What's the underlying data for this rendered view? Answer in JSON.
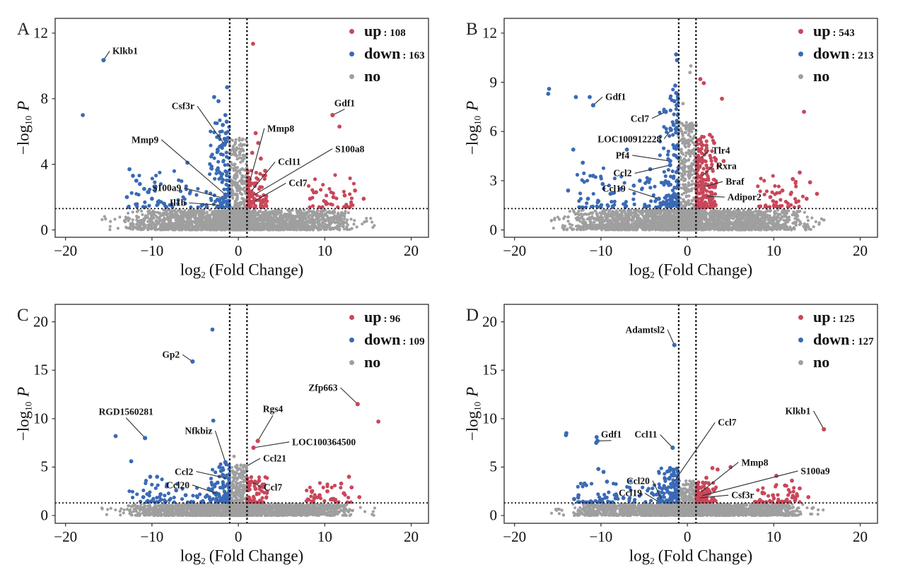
{
  "colors": {
    "up": "#c9475a",
    "down": "#3a6ab5",
    "no": "#9f9f9f",
    "annotation": "#2e2e2e",
    "frame": "#3c3c3c",
    "threshold": "#0a0a0a"
  },
  "legend_labels": {
    "up": "up",
    "down": "down",
    "no": "no"
  },
  "axis": {
    "x_label": {
      "pre": "log",
      "sub": "2",
      "post": "(Fold Change)"
    },
    "y_label": {
      "pre": "−log",
      "sub": "10",
      "post": "P"
    }
  },
  "chart_data": [
    {
      "panel": "A",
      "type": "scatter",
      "xlabel": "log2 (Fold Change)",
      "ylabel": "-log10 P",
      "xlim": [
        -20,
        20
      ],
      "ylim": [
        0,
        12
      ],
      "xticks": [
        -20,
        -10,
        0,
        10,
        20
      ],
      "yticks": [
        0,
        4,
        8,
        12
      ],
      "thresholds": {
        "log2fc": [
          -1,
          1
        ],
        "neg_log10_p": 1.3
      },
      "counts": {
        "up": 108,
        "down": 163
      },
      "labeled_genes": [
        {
          "name": "Klkb1",
          "cls": "down",
          "x": -15.6,
          "y": 10.35,
          "lx": -13.1,
          "ly": 10.9
        },
        {
          "name": "Csf3r",
          "cls": "down",
          "x": -1.6,
          "y": 5.2,
          "lx": -6.4,
          "ly": 7.55
        },
        {
          "name": "Mmp9",
          "cls": "down",
          "x": -1.5,
          "y": 2.15,
          "lx": -10.8,
          "ly": 5.5
        },
        {
          "name": "S100a9",
          "cls": "down",
          "x": -1.8,
          "y": 1.95,
          "lx": -8.3,
          "ly": 2.55
        },
        {
          "name": "Il1b",
          "cls": "down",
          "x": -2.0,
          "y": 1.5,
          "lx": -7.0,
          "ly": 1.65
        },
        {
          "name": "Mmp8",
          "cls": "up",
          "x": 1.3,
          "y": 2.9,
          "lx": 4.9,
          "ly": 6.2
        },
        {
          "name": "Ccl11",
          "cls": "up",
          "x": 1.4,
          "y": 2.3,
          "lx": 5.9,
          "ly": 4.15
        },
        {
          "name": "S100a8",
          "cls": "up",
          "x": 1.55,
          "y": 2.05,
          "lx": 12.9,
          "ly": 4.95
        },
        {
          "name": "Ccl7",
          "cls": "up",
          "x": 1.7,
          "y": 1.7,
          "lx": 6.9,
          "ly": 2.85
        },
        {
          "name": "Gdf1",
          "cls": "up",
          "x": 10.9,
          "y": 7.0,
          "lx": 12.3,
          "ly": 7.75
        }
      ],
      "extra_points": {
        "down": [
          [
            -18,
            7.0
          ],
          [
            -12.6,
            3.7
          ],
          [
            -12.2,
            3.3
          ],
          [
            -11.8,
            3.0
          ],
          [
            -11.4,
            2.8
          ],
          [
            -10.9,
            2.5
          ],
          [
            -10.4,
            2.3
          ],
          [
            -12.9,
            2.0
          ],
          [
            -10.0,
            1.9
          ],
          [
            -9.3,
            1.7
          ],
          [
            -8.6,
            1.6
          ],
          [
            -2.8,
            8.1
          ],
          [
            -2.3,
            7.85
          ],
          [
            -1.3,
            8.7
          ],
          [
            -1.5,
            7.0
          ],
          [
            -1.35,
            6.6
          ],
          [
            -1.8,
            6.4
          ],
          [
            -1.45,
            5.9
          ],
          [
            -1.6,
            5.55
          ],
          [
            -2.4,
            4.9
          ],
          [
            -5.9,
            4.1
          ]
        ],
        "up": [
          [
            1.7,
            11.35
          ],
          [
            11.7,
            6.3
          ],
          [
            2.0,
            5.9
          ],
          [
            2.3,
            5.3
          ],
          [
            1.6,
            4.7
          ],
          [
            2.6,
            4.35
          ],
          [
            3.1,
            3.6
          ],
          [
            13.5,
            2.4
          ],
          [
            14.5,
            1.9
          ],
          [
            12.3,
            2.1
          ],
          [
            9.0,
            2.3
          ],
          [
            8.3,
            1.9
          ],
          [
            10.1,
            1.7
          ],
          [
            11.0,
            2.0
          ]
        ],
        "no": [
          [
            0.35,
            4.9
          ],
          [
            0.55,
            4.55
          ]
        ]
      },
      "cloud": {
        "seed": 101,
        "band": 2000,
        "bandHalf": 13.6,
        "horn": 170,
        "far": 26,
        "spike": 430,
        "spikeH": 5.6,
        "downCol": 115,
        "downColH": 5.4,
        "downTail": 58,
        "upCol": 95,
        "upColH": 2.3,
        "upBand": 40
      }
    },
    {
      "panel": "B",
      "type": "scatter",
      "xlabel": "log2 (Fold Change)",
      "ylabel": "-log10 P",
      "xlim": [
        -20,
        20
      ],
      "ylim": [
        0,
        12
      ],
      "xticks": [
        -20,
        -10,
        0,
        10,
        20
      ],
      "yticks": [
        0,
        3,
        6,
        9,
        12
      ],
      "thresholds": {
        "log2fc": [
          -1,
          1
        ],
        "neg_log10_p": 1.3
      },
      "counts": {
        "up": 543,
        "down": 213
      },
      "labeled_genes": [
        {
          "name": "Gdf1",
          "cls": "down",
          "x": -10.9,
          "y": 7.6,
          "lx": -8.3,
          "ly": 8.1
        },
        {
          "name": "Ccl7",
          "cls": "down",
          "x": -2.5,
          "y": 7.2,
          "lx": -5.5,
          "ly": 6.8
        },
        {
          "name": "LOC100912228",
          "cls": "down",
          "x": -1.9,
          "y": 6.1,
          "lx": -6.7,
          "ly": 5.55
        },
        {
          "name": "Pf4",
          "cls": "down",
          "x": -2.0,
          "y": 4.2,
          "lx": -7.5,
          "ly": 4.55
        },
        {
          "name": "Ccl2",
          "cls": "down",
          "x": -2.0,
          "y": 3.95,
          "lx": -7.5,
          "ly": 3.45
        },
        {
          "name": "Ccl19",
          "cls": "down",
          "x": -3.3,
          "y": 1.9,
          "lx": -8.5,
          "ly": 2.5
        },
        {
          "name": "Tlr4",
          "cls": "up",
          "x": 1.45,
          "y": 4.35,
          "lx": 3.9,
          "ly": 4.85
        },
        {
          "name": "Rxra",
          "cls": "up",
          "x": 1.55,
          "y": 3.2,
          "lx": 4.5,
          "ly": 3.9
        },
        {
          "name": "Braf",
          "cls": "up",
          "x": 1.75,
          "y": 2.6,
          "lx": 5.5,
          "ly": 2.95
        },
        {
          "name": "Adipor2",
          "cls": "up",
          "x": 2.0,
          "y": 2.05,
          "lx": 6.6,
          "ly": 2.0
        }
      ],
      "extra_points": {
        "down": [
          [
            -16.0,
            8.6
          ],
          [
            -16.1,
            8.3
          ],
          [
            -12.9,
            8.1
          ],
          [
            -11.3,
            8.1
          ],
          [
            -13.2,
            4.9
          ],
          [
            -7.0,
            4.9
          ],
          [
            -12.1,
            4.1
          ],
          [
            -10.9,
            3.3
          ],
          [
            -9.8,
            2.8
          ],
          [
            -13.8,
            2.4
          ],
          [
            -8.9,
            2.2
          ],
          [
            -11.5,
            1.9
          ],
          [
            -7.7,
            2.5
          ],
          [
            -1.3,
            10.7
          ],
          [
            -1.2,
            10.35
          ],
          [
            -1.4,
            8.8
          ],
          [
            -1.3,
            8.35
          ],
          [
            -1.5,
            7.85
          ],
          [
            -1.25,
            7.6
          ],
          [
            -1.6,
            6.4
          ],
          [
            -1.35,
            6.15
          ],
          [
            -4.3,
            3.7
          ],
          [
            -5.5,
            3.0
          ],
          [
            -6.2,
            2.7
          ]
        ],
        "up": [
          [
            1.5,
            9.2
          ],
          [
            1.9,
            8.95
          ],
          [
            4.0,
            8.0
          ],
          [
            13.5,
            7.2
          ],
          [
            2.6,
            5.8
          ],
          [
            3.1,
            5.3
          ],
          [
            2.2,
            5.15
          ],
          [
            4.2,
            4.2
          ],
          [
            3.6,
            3.9
          ],
          [
            13.0,
            3.5
          ],
          [
            12.2,
            3.1
          ],
          [
            14.2,
            2.9
          ],
          [
            11.0,
            2.4
          ],
          [
            9.6,
            2.0
          ],
          [
            13.8,
            1.9
          ],
          [
            15.0,
            2.2
          ],
          [
            12.6,
            1.7
          ]
        ],
        "no": [
          [
            0.4,
            10.0
          ],
          [
            0.3,
            9.6
          ],
          [
            -0.5,
            7.7
          ],
          [
            0.5,
            6.3
          ]
        ]
      },
      "cloud": {
        "seed": 202,
        "band": 2300,
        "bandHalf": 14.6,
        "horn": 170,
        "far": 30,
        "spike": 520,
        "spikeH": 6.6,
        "downCol": 135,
        "downColH": 7.2,
        "downTail": 70,
        "upCol": 215,
        "upColH": 4.4,
        "upBand": 48
      }
    },
    {
      "panel": "C",
      "type": "scatter",
      "xlabel": "log2 (Fold Change)",
      "ylabel": "-log10 P",
      "xlim": [
        -20,
        20
      ],
      "ylim": [
        0,
        20
      ],
      "xticks": [
        -20,
        -10,
        0,
        10,
        20
      ],
      "yticks": [
        0,
        5,
        10,
        15,
        20
      ],
      "thresholds": {
        "log2fc": [
          -1,
          1
        ],
        "neg_log10_p": 1.3
      },
      "counts": {
        "up": 96,
        "down": 109
      },
      "labeled_genes": [
        {
          "name": "Gp2",
          "cls": "down",
          "x": -5.3,
          "y": 15.9,
          "lx": -7.8,
          "ly": 16.6
        },
        {
          "name": "RGD1560281",
          "cls": "down",
          "x": -10.8,
          "y": 8.0,
          "lx": -13.0,
          "ly": 10.75
        },
        {
          "name": "Nfkbiz",
          "cls": "down",
          "x": -1.5,
          "y": 5.5,
          "lx": -4.6,
          "ly": 8.75
        },
        {
          "name": "Ccl2",
          "cls": "down",
          "x": -1.1,
          "y": 3.8,
          "lx": -6.3,
          "ly": 4.55
        },
        {
          "name": "Ccl20",
          "cls": "down",
          "x": -2.3,
          "y": 2.2,
          "lx": -7.0,
          "ly": 3.15
        },
        {
          "name": "Rgs4",
          "cls": "up",
          "x": 2.25,
          "y": 7.7,
          "lx": 4.0,
          "ly": 11.0
        },
        {
          "name": "LOC100364500",
          "cls": "up",
          "x": 1.75,
          "y": 7.0,
          "lx": 9.9,
          "ly": 7.6
        },
        {
          "name": "Ccl21",
          "cls": "no",
          "x": 0.85,
          "y": 5.05,
          "lx": 4.2,
          "ly": 5.9
        },
        {
          "name": "Ccl7",
          "cls": "up",
          "x": 1.5,
          "y": 3.5,
          "lx": 4.0,
          "ly": 2.95
        },
        {
          "name": "Zfp663",
          "cls": "up",
          "x": 13.8,
          "y": 11.5,
          "lx": 9.8,
          "ly": 13.2
        }
      ],
      "extra_points": {
        "down": [
          [
            -3.0,
            19.2
          ],
          [
            -2.9,
            9.8
          ],
          [
            -14.2,
            8.2
          ],
          [
            -12.4,
            5.6
          ],
          [
            -10.2,
            4.0
          ],
          [
            -9.4,
            4.0
          ],
          [
            -8.3,
            3.0
          ],
          [
            -9.0,
            2.2
          ],
          [
            -7.2,
            2.6
          ],
          [
            -11.0,
            1.9
          ],
          [
            -6.1,
            2.1
          ],
          [
            -2.2,
            5.0
          ],
          [
            -2.0,
            4.6
          ],
          [
            -1.8,
            4.2
          ],
          [
            -2.4,
            3.4
          ],
          [
            -1.6,
            3.0
          ]
        ],
        "up": [
          [
            16.2,
            9.7
          ],
          [
            12.8,
            4.0
          ],
          [
            11.9,
            3.3
          ],
          [
            13.1,
            2.9
          ],
          [
            10.3,
            2.5
          ],
          [
            9.4,
            2.1
          ],
          [
            8.8,
            1.8
          ],
          [
            2.4,
            3.6
          ],
          [
            3.0,
            3.2
          ],
          [
            2.0,
            2.75
          ],
          [
            12.2,
            2.3
          ],
          [
            14.0,
            1.9
          ],
          [
            10.8,
            1.7
          ]
        ],
        "no": [
          [
            -0.5,
            6.1
          ],
          [
            0.3,
            5.2
          ]
        ]
      },
      "cloud": {
        "seed": 303,
        "band": 2000,
        "bandHalf": 13.2,
        "horn": 150,
        "far": 22,
        "spike": 400,
        "spikeH": 5.2,
        "downCol": 75,
        "downColH": 4.0,
        "downTail": 60,
        "upCol": 70,
        "upColH": 2.6,
        "upBand": 36
      }
    },
    {
      "panel": "D",
      "type": "scatter",
      "xlabel": "log2 (Fold Change)",
      "ylabel": "-log10 P",
      "xlim": [
        -20,
        20
      ],
      "ylim": [
        0,
        20
      ],
      "xticks": [
        -20,
        -10,
        0,
        10,
        20
      ],
      "yticks": [
        0,
        5,
        10,
        15,
        20
      ],
      "thresholds": {
        "log2fc": [
          -1,
          1
        ],
        "neg_log10_p": 1.3
      },
      "counts": {
        "up": 125,
        "down": 127
      },
      "labeled_genes": [
        {
          "name": "Adamtsl2",
          "cls": "down",
          "x": -1.5,
          "y": 17.6,
          "lx": -4.9,
          "ly": 19.2
        },
        {
          "name": "Gdf1",
          "cls": "down",
          "x": -10.4,
          "y": 7.7,
          "lx": -8.8,
          "ly": 8.4
        },
        {
          "name": "Ccl11",
          "cls": "down",
          "x": -1.7,
          "y": 7.0,
          "lx": -4.8,
          "ly": 8.35
        },
        {
          "name": "Ccl7",
          "cls": "down",
          "x": -1.7,
          "y": 3.3,
          "lx": 4.6,
          "ly": 9.6
        },
        {
          "name": "Ccl20",
          "cls": "down",
          "x": -2.9,
          "y": 1.5,
          "lx": -5.7,
          "ly": 3.6
        },
        {
          "name": "Ccl19",
          "cls": "down",
          "x": -3.3,
          "y": 1.4,
          "lx": -6.6,
          "ly": 2.3
        },
        {
          "name": "Mmp8",
          "cls": "up",
          "x": 1.4,
          "y": 2.3,
          "lx": 7.8,
          "ly": 5.5
        },
        {
          "name": "S100a9",
          "cls": "up",
          "x": 1.5,
          "y": 2.0,
          "lx": 14.8,
          "ly": 4.6
        },
        {
          "name": "Csf3r",
          "cls": "up",
          "x": 1.2,
          "y": 1.8,
          "lx": 6.4,
          "ly": 2.1
        },
        {
          "name": "Klkb1",
          "cls": "up",
          "x": 15.8,
          "y": 8.9,
          "lx": 12.8,
          "ly": 10.8
        }
      ],
      "extra_points": {
        "down": [
          [
            -14.0,
            8.5
          ],
          [
            -14.05,
            8.3
          ],
          [
            -10.5,
            8.1
          ],
          [
            -10.55,
            7.5
          ],
          [
            -10.3,
            4.8
          ],
          [
            -9.7,
            4.5
          ],
          [
            -11.9,
            3.3
          ],
          [
            -9.3,
            3.5
          ],
          [
            -12.6,
            2.1
          ],
          [
            -8.2,
            2.0
          ],
          [
            -7.4,
            1.8
          ],
          [
            -13.1,
            1.7
          ],
          [
            -2.0,
            4.9
          ],
          [
            -2.3,
            4.55
          ],
          [
            -1.8,
            4.2
          ],
          [
            -2.6,
            3.8
          ],
          [
            -3.2,
            2.9
          ],
          [
            -4.1,
            2.3
          ]
        ],
        "up": [
          [
            2.9,
            4.9
          ],
          [
            3.5,
            4.75
          ],
          [
            5.0,
            5.0
          ],
          [
            10.3,
            4.1
          ],
          [
            12.1,
            3.6
          ],
          [
            11.3,
            3.1
          ],
          [
            13.0,
            2.8
          ],
          [
            8.7,
            2.3
          ],
          [
            9.9,
            2.1
          ],
          [
            14.0,
            1.9
          ],
          [
            12.5,
            1.7
          ],
          [
            8.4,
            1.6
          ],
          [
            2.2,
            3.9
          ],
          [
            1.8,
            3.4
          ]
        ],
        "no": []
      },
      "cloud": {
        "seed": 404,
        "band": 2100,
        "bandHalf": 13.6,
        "horn": 160,
        "far": 24,
        "spike": 330,
        "spikeH": 3.6,
        "downCol": 110,
        "downColH": 3.6,
        "downTail": 62,
        "upCol": 100,
        "upColH": 2.2,
        "upBand": 42
      }
    }
  ]
}
